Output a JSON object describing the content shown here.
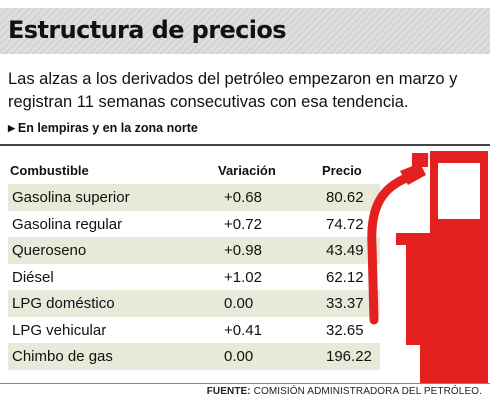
{
  "title": "Estructura de precios",
  "description": "Las alzas a los derivados del petróleo empezaron en marzo y registran 11 semanas consecutivas con esa tendencia.",
  "unit_note": "En lempiras y en la zona norte",
  "colors": {
    "pump": "#e4211f",
    "row_shade": "#e9e9d9",
    "title_band": "#dedede"
  },
  "icons": {
    "fuel_pump": "fuel-pump-icon",
    "bullet": "triangle-bullet-icon"
  },
  "chart_data": {
    "type": "table",
    "columns": [
      "Combustible",
      "Variación",
      "Precio"
    ],
    "rows": [
      {
        "name": "Gasolina superior",
        "variation": "+0.68",
        "price": "80.62"
      },
      {
        "name": "Gasolina regular",
        "variation": "+0.72",
        "price": "74.72"
      },
      {
        "name": "Queroseno",
        "variation": "+0.98",
        "price": "43.49"
      },
      {
        "name": "Diésel",
        "variation": "+1.02",
        "price": "62.12"
      },
      {
        "name": "LPG doméstico",
        "variation": "0.00",
        "price": "33.37"
      },
      {
        "name": "LPG vehicular",
        "variation": "+0.41",
        "price": "32.65"
      },
      {
        "name": "Chimbo de gas",
        "variation": "0.00",
        "price": "196.22"
      }
    ]
  },
  "source": {
    "label": "FUENTE:",
    "text": "COMISIÓN ADMINISTRADORA DEL PETRÓLEO."
  }
}
